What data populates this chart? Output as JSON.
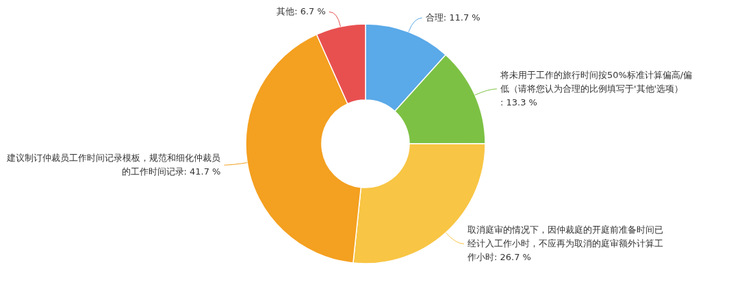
{
  "chart_data": {
    "type": "donut",
    "categories": [
      "合理",
      "将未用于工作的旅行时间按50%标准计算偏高/偏低（请将您认为合理的比例填写于'其他'选项）",
      "取消庭审的情况下，因仲裁庭的开庭前准备时间已经计入工作小时，不应再为取消的庭审额外计算工作小时",
      "建议制订仲裁员工作时间记录模板，规范和细化仲裁员的工作时间记录",
      "其他"
    ],
    "values": [
      11.7,
      13.3,
      26.7,
      41.7,
      6.7
    ],
    "colors": [
      "#5aa9e8",
      "#7cc144",
      "#f8c544",
      "#f4a020",
      "#e85050"
    ],
    "value_labels": [
      ": 11.7 %",
      ": 13.3 %",
      ": 26.7 %",
      ": 41.7 %",
      ": 6.7 %"
    ],
    "legend": false
  }
}
